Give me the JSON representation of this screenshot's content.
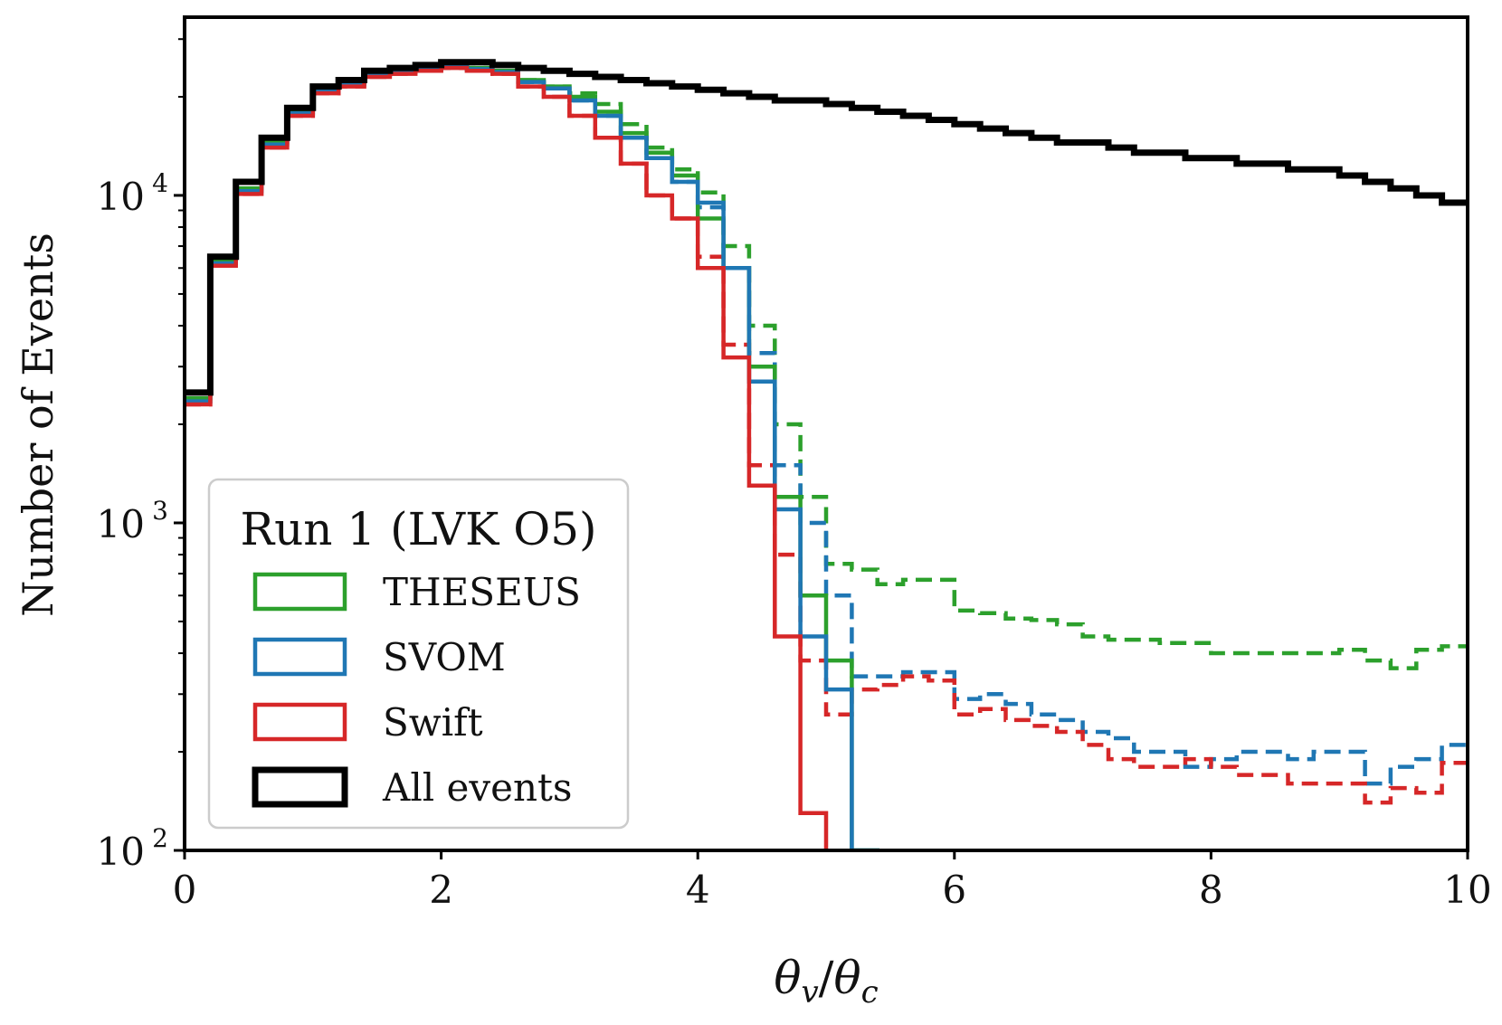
{
  "chart_data": {
    "type": "histogram-step",
    "xlabel": "θv/θc",
    "ylabel": "Number of Events",
    "xlim": [
      0,
      10
    ],
    "ylim": [
      100,
      35000
    ],
    "yscale": "log",
    "x_ticks": [
      0,
      2,
      4,
      6,
      8,
      10
    ],
    "y_ticks": [
      {
        "value": 100,
        "base": "10",
        "exp": "2"
      },
      {
        "value": 1000,
        "base": "10",
        "exp": "3"
      },
      {
        "value": 10000,
        "base": "10",
        "exp": "4"
      }
    ],
    "bin_width": 0.2,
    "legend": {
      "title": "Run 1 (LVK O5)",
      "placement": "lower-left",
      "entries": [
        {
          "label": "THESEUS",
          "color": "#2ca02c"
        },
        {
          "label": "SVOM",
          "color": "#1f77b4"
        },
        {
          "label": "Swift",
          "color": "#d62728"
        },
        {
          "label": "All events",
          "color": "#000000"
        }
      ]
    },
    "series": [
      {
        "name": "All events",
        "color": "#000000",
        "style": "solid",
        "width": 7,
        "values": [
          2500,
          6500,
          11000,
          15000,
          18500,
          21500,
          22500,
          24000,
          24500,
          25000,
          25500,
          25500,
          25000,
          24500,
          24000,
          23500,
          23000,
          22500,
          22000,
          21500,
          21000,
          20500,
          20000,
          19500,
          19500,
          19000,
          18500,
          18000,
          17500,
          17000,
          16500,
          16000,
          15500,
          15000,
          14500,
          14500,
          14000,
          13500,
          13500,
          13000,
          13000,
          12500,
          12500,
          12000,
          12000,
          11500,
          11000,
          10500,
          10000,
          9500
        ]
      },
      {
        "name": "THESEUS",
        "color": "#2ca02c",
        "style": "solid",
        "width": 4.5,
        "values": [
          2400,
          6300,
          10500,
          14500,
          18000,
          21000,
          22000,
          23500,
          24000,
          24500,
          25000,
          24500,
          24000,
          22500,
          21500,
          20000,
          18000,
          15500,
          13500,
          11500,
          8500,
          6000,
          3000,
          1200,
          600,
          380,
          100,
          null,
          null,
          null,
          null,
          null,
          null,
          null,
          null,
          null,
          null,
          null,
          null,
          null,
          null,
          null,
          null,
          null,
          null,
          null,
          null,
          null,
          null,
          null
        ]
      },
      {
        "name": "THESEUS dashed",
        "color": "#2ca02c",
        "style": "dashed",
        "width": 4.5,
        "values": [
          2400,
          6300,
          10500,
          14500,
          18000,
          21000,
          22000,
          23500,
          24000,
          24500,
          25000,
          24500,
          24000,
          22500,
          21500,
          20500,
          19000,
          16500,
          14000,
          12000,
          10200,
          7000,
          4000,
          2000,
          1200,
          750,
          720,
          650,
          670,
          670,
          540,
          530,
          510,
          505,
          490,
          450,
          440,
          440,
          430,
          430,
          400,
          400,
          400,
          400,
          400,
          410,
          380,
          360,
          410,
          420
        ]
      },
      {
        "name": "SVOM",
        "color": "#1f77b4",
        "style": "solid",
        "width": 4.5,
        "values": [
          2350,
          6200,
          10300,
          14300,
          17800,
          20800,
          21800,
          23300,
          23800,
          24300,
          24800,
          24300,
          23800,
          22200,
          21200,
          19500,
          17500,
          15000,
          13000,
          11000,
          9500,
          6000,
          2700,
          1100,
          450,
          310,
          100,
          null,
          null,
          null,
          null,
          null,
          null,
          null,
          null,
          null,
          null,
          null,
          null,
          null,
          null,
          null,
          null,
          null,
          null,
          null,
          null,
          null,
          null,
          null
        ]
      },
      {
        "name": "SVOM dashed",
        "color": "#1f77b4",
        "style": "dashed",
        "width": 4.5,
        "values": [
          2350,
          6200,
          10300,
          14300,
          17800,
          20800,
          21800,
          23300,
          23800,
          24300,
          24800,
          24300,
          23800,
          22200,
          21200,
          19500,
          17500,
          15000,
          13000,
          11000,
          9200,
          6000,
          3300,
          1500,
          1000,
          600,
          340,
          340,
          350,
          350,
          290,
          300,
          280,
          260,
          250,
          230,
          220,
          200,
          200,
          180,
          190,
          200,
          200,
          190,
          200,
          200,
          160,
          180,
          190,
          210
        ]
      },
      {
        "name": "Swift",
        "color": "#d62728",
        "style": "solid",
        "width": 4.5,
        "values": [
          2300,
          6100,
          10100,
          14000,
          17500,
          20500,
          21500,
          23000,
          23500,
          24000,
          24500,
          24000,
          23500,
          21500,
          20000,
          17500,
          15000,
          12500,
          10000,
          8500,
          6000,
          3200,
          1300,
          450,
          130,
          null,
          null,
          null,
          null,
          null,
          null,
          null,
          null,
          null,
          null,
          null,
          null,
          null,
          null,
          null,
          null,
          null,
          null,
          null,
          null,
          null,
          null,
          null,
          null,
          null
        ]
      },
      {
        "name": "Swift dashed",
        "color": "#d62728",
        "style": "dashed",
        "width": 4.5,
        "values": [
          2300,
          6100,
          10100,
          14000,
          17500,
          20500,
          21500,
          23000,
          23500,
          24000,
          24500,
          24000,
          23500,
          21500,
          20000,
          17500,
          15000,
          12500,
          10000,
          8500,
          6500,
          3500,
          1500,
          800,
          380,
          260,
          310,
          320,
          340,
          330,
          260,
          270,
          250,
          240,
          230,
          210,
          190,
          180,
          180,
          190,
          180,
          170,
          170,
          160,
          160,
          160,
          140,
          155,
          150,
          185
        ]
      }
    ]
  }
}
